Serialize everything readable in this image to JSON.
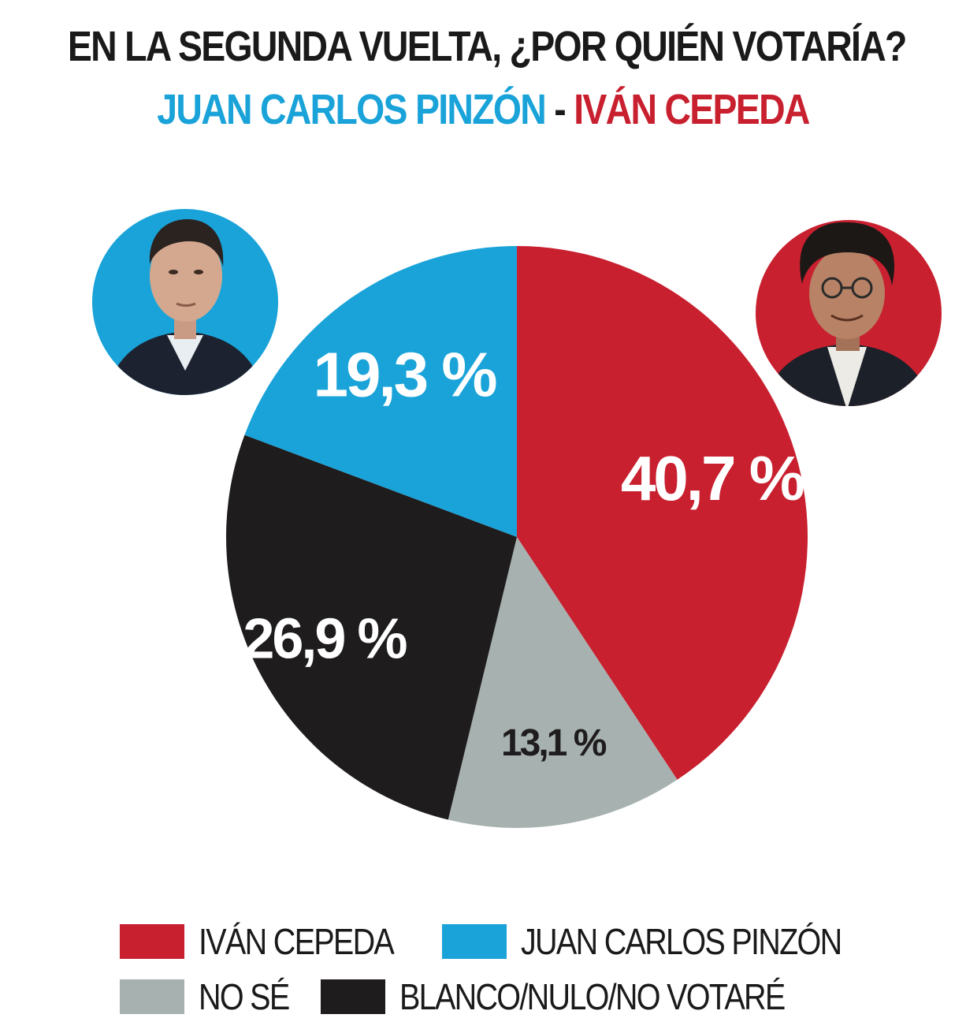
{
  "title": "EN LA SEGUNDA VUELTA, ¿POR QUIÉN VOTARÍA?",
  "subtitle": {
    "candidate_a": "JUAN CARLOS PINZÓN",
    "separator": "-",
    "candidate_b": "IVÁN CEPEDA"
  },
  "colors": {
    "cepeda": "#c8202f",
    "pinzon": "#1aa3d9",
    "no_se": "#a7b1b0",
    "blanco": "#1f1c1d"
  },
  "photos": {
    "left": "juan-carlos-pinzon-portrait",
    "right": "ivan-cepeda-portrait"
  },
  "chart_data": {
    "type": "pie",
    "title": "EN LA SEGUNDA VUELTA, ¿POR QUIÉN VOTARÍA?",
    "series": [
      {
        "name": "IVÁN CEPEDA",
        "value": 40.7,
        "label": "40,7 %",
        "color": "#c8202f"
      },
      {
        "name": "NO SÉ",
        "value": 13.1,
        "label": "13,1 %",
        "color": "#a7b1b0"
      },
      {
        "name": "BLANCO/NULO/NO VOTARÉ",
        "value": 26.9,
        "label": "26,9 %",
        "color": "#1f1c1d"
      },
      {
        "name": "JUAN CARLOS PINZÓN",
        "value": 19.3,
        "label": "19,3 %",
        "color": "#1aa3d9"
      }
    ],
    "start": "12 o'clock",
    "direction": "clockwise",
    "legend_position": "bottom"
  },
  "legend": {
    "row1": [
      {
        "label": "IVÁN CEPEDA",
        "color": "#c8202f"
      },
      {
        "label": "JUAN CARLOS PINZÓN",
        "color": "#1aa3d9"
      }
    ],
    "row2": [
      {
        "label": "NO SÉ",
        "color": "#a7b1b0"
      },
      {
        "label": "BLANCO/NULO/NO VOTARÉ",
        "color": "#1f1c1d"
      }
    ]
  }
}
